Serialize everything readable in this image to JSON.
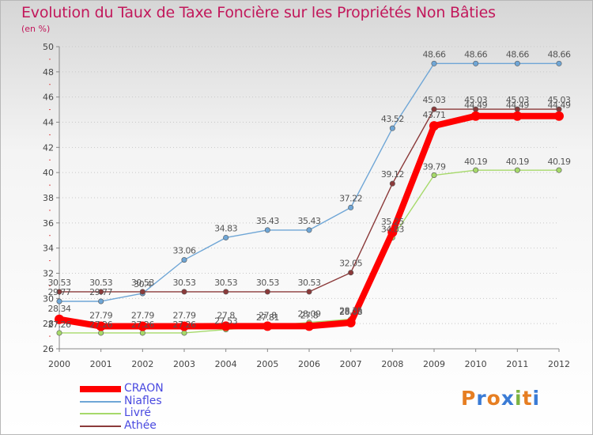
{
  "title": "Evolution du Taux de Taxe Foncière sur les Propriétés Non Bâties",
  "unit": "(en %)",
  "logo": {
    "text": "Proxiti",
    "colors": [
      "#e67e22",
      "#3a7bd5",
      "#e67e22",
      "#3a7bd5",
      "#7cb342",
      "#e67e22",
      "#3a7bd5"
    ]
  },
  "chart_data": {
    "type": "line",
    "title": "Evolution du Taux de Taxe Foncière sur les Propriétés Non Bâties",
    "ylabel": "(en %)",
    "xlabel": "",
    "ylim": [
      26,
      50
    ],
    "yticks": [
      26,
      28,
      30,
      32,
      34,
      36,
      38,
      40,
      42,
      44,
      46,
      48,
      50
    ],
    "categories": [
      "2000",
      "2001",
      "2002",
      "2003",
      "2004",
      "2005",
      "2006",
      "2007",
      "2008",
      "2009",
      "2010",
      "2011",
      "2012"
    ],
    "series": [
      {
        "name": "CRAON",
        "color": "#ff0000",
        "values": [
          28.34,
          27.79,
          27.79,
          27.79,
          27.8,
          27.8,
          27.8,
          28.08,
          35.25,
          43.71,
          44.49,
          44.49,
          44.49
        ],
        "labels": [
          "28.34",
          "27.79",
          "27.79",
          "27.79",
          "27.8",
          "27.8",
          "27.8",
          "28.08",
          "35.25",
          "43.71",
          "44.49",
          "44.49",
          "44.49"
        ]
      },
      {
        "name": "Niafles",
        "color": "#6fa6d6",
        "values": [
          29.77,
          29.77,
          30.4,
          33.06,
          34.83,
          35.43,
          35.43,
          37.22,
          43.52,
          48.66,
          48.66,
          48.66,
          48.66
        ],
        "labels": [
          "29.77",
          "29.77",
          "30.4",
          "33.06",
          "34.83",
          "35.43",
          "35.43",
          "37.22",
          "43.52",
          "48.66",
          "48.66",
          "48.66",
          "48.66"
        ]
      },
      {
        "name": "Livré",
        "color": "#a6d96a",
        "values": [
          27.26,
          27.26,
          27.26,
          27.26,
          27.53,
          27.81,
          28.09,
          28.35,
          34.83,
          39.79,
          40.19,
          40.19,
          40.19
        ],
        "labels": [
          "27.26",
          "27.26",
          "27.26",
          "27.26",
          "27.53",
          "27.81",
          "28.09",
          "28.35",
          "34.83",
          "39.79",
          "40.19",
          "40.19",
          "40.19"
        ]
      },
      {
        "name": "Athée",
        "color": "#8b3a3a",
        "values": [
          30.53,
          30.53,
          30.53,
          30.53,
          30.53,
          30.53,
          30.53,
          32.05,
          39.12,
          45.03,
          45.03,
          45.03,
          45.03
        ],
        "labels": [
          "30.53",
          "30.53",
          "30.53",
          "30.53",
          "30.53",
          "30.53",
          "30.53",
          "32.05",
          "39.12",
          "45.03",
          "45.03",
          "45.03",
          "45.03"
        ]
      }
    ],
    "legend_position": "bottom-left",
    "grid": "horizontal-dotted"
  }
}
